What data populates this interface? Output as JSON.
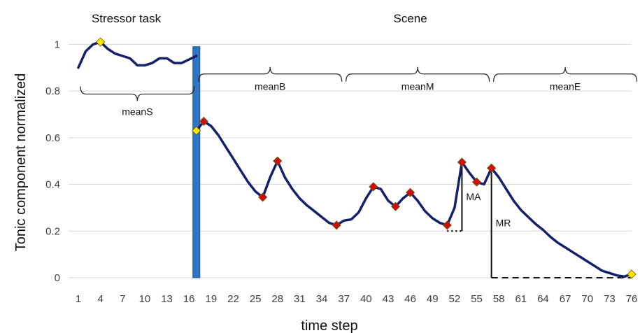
{
  "chart_data": {
    "type": "line",
    "xlabel": "time step",
    "ylabel": "Tonic component normalized",
    "ylim": [
      0,
      1.1
    ],
    "yticks": [
      0,
      0.2,
      0.4,
      0.6,
      0.8,
      1
    ],
    "ytick_labels": [
      "0",
      "0.2",
      "0.4",
      "0.6",
      "0.8",
      "1"
    ],
    "xlim": [
      1,
      76
    ],
    "xticks": [
      1,
      4,
      7,
      10,
      13,
      16,
      19,
      22,
      25,
      28,
      31,
      34,
      37,
      40,
      43,
      46,
      49,
      52,
      55,
      58,
      61,
      64,
      67,
      70,
      73,
      76
    ],
    "grid": "horizontal",
    "colors": {
      "line": "#14206b",
      "marker_yellow": "#ffe600",
      "marker_red": "#cc1010",
      "divider": "#2e75c4"
    },
    "sections": [
      {
        "label": "Stressor task",
        "x": 7.5
      },
      {
        "label": "Scene",
        "x": 46
      }
    ],
    "stress_segment": {
      "x": [
        1,
        2,
        3,
        4,
        5,
        6,
        7,
        8,
        9,
        10,
        11,
        12,
        13,
        14,
        15,
        16,
        17
      ],
      "y": [
        0.9,
        0.97,
        1.0,
        1.01,
        0.98,
        0.96,
        0.95,
        0.94,
        0.91,
        0.91,
        0.92,
        0.94,
        0.94,
        0.92,
        0.92,
        0.935,
        0.95
      ]
    },
    "scene_segment": {
      "x": [
        17,
        18,
        19,
        20,
        21,
        22,
        23,
        24,
        25,
        26,
        27,
        28,
        29,
        30,
        31,
        32,
        33,
        34,
        35,
        36,
        37,
        38,
        39,
        40,
        41,
        42,
        43,
        44,
        45,
        46,
        47,
        48,
        49,
        50,
        51,
        52,
        53,
        54,
        55,
        56,
        57,
        58,
        59,
        60,
        61,
        62,
        63,
        64,
        65,
        66,
        67,
        68,
        69,
        70,
        71,
        72,
        73,
        74,
        75,
        76
      ],
      "y": [
        0.63,
        0.67,
        0.65,
        0.61,
        0.56,
        0.51,
        0.46,
        0.41,
        0.37,
        0.345,
        0.43,
        0.5,
        0.43,
        0.38,
        0.34,
        0.31,
        0.285,
        0.26,
        0.235,
        0.225,
        0.245,
        0.25,
        0.28,
        0.34,
        0.39,
        0.38,
        0.33,
        0.305,
        0.34,
        0.365,
        0.33,
        0.285,
        0.255,
        0.235,
        0.225,
        0.3,
        0.495,
        0.45,
        0.41,
        0.4,
        0.47,
        0.43,
        0.38,
        0.33,
        0.29,
        0.26,
        0.23,
        0.205,
        0.175,
        0.15,
        0.13,
        0.11,
        0.09,
        0.07,
        0.05,
        0.03,
        0.02,
        0.01,
        0.005,
        0.015
      ]
    },
    "markers": [
      {
        "x": 4,
        "y": 1.01,
        "color": "yellow"
      },
      {
        "x": 17,
        "y": 0.63,
        "color": "yellow"
      },
      {
        "x": 76,
        "y": 0.015,
        "color": "yellow"
      },
      {
        "x": 18,
        "y": 0.67,
        "color": "red"
      },
      {
        "x": 26,
        "y": 0.345,
        "color": "red"
      },
      {
        "x": 28,
        "y": 0.5,
        "color": "red"
      },
      {
        "x": 36,
        "y": 0.225,
        "color": "red"
      },
      {
        "x": 41,
        "y": 0.39,
        "color": "red"
      },
      {
        "x": 44,
        "y": 0.305,
        "color": "red"
      },
      {
        "x": 46,
        "y": 0.365,
        "color": "red"
      },
      {
        "x": 51,
        "y": 0.225,
        "color": "red"
      },
      {
        "x": 53,
        "y": 0.495,
        "color": "red"
      },
      {
        "x": 55,
        "y": 0.41,
        "color": "red"
      },
      {
        "x": 57,
        "y": 0.47,
        "color": "red"
      }
    ],
    "divider_x": 17,
    "braces": [
      {
        "label": "meanS",
        "x_from": 1,
        "x_to": 17,
        "y": 0.82,
        "orientation": "down"
      },
      {
        "label": "meanB",
        "x_from": 17,
        "x_to": 37,
        "y": 0.84,
        "orientation": "up"
      },
      {
        "label": "meanM",
        "x_from": 37,
        "x_to": 57,
        "y": 0.84,
        "orientation": "up"
      },
      {
        "label": "meanE",
        "x_from": 57,
        "x_to": 77,
        "y": 0.84,
        "orientation": "up"
      }
    ],
    "annotations": [
      {
        "label": "MA",
        "x_base": 53,
        "y_base": 0.2,
        "y_top": 0.495,
        "baseline_from": 51,
        "baseline_style": "dotted"
      },
      {
        "label": "MR",
        "x_base": 57,
        "y_base": 0.0,
        "y_top": 0.47,
        "baseline_to": 76,
        "baseline_style": "dashed"
      }
    ]
  }
}
